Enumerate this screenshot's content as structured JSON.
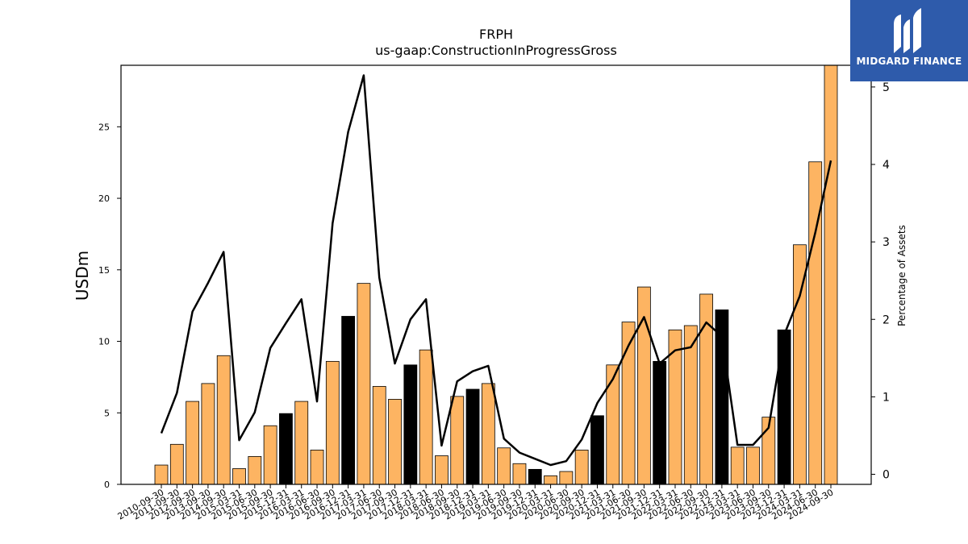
{
  "chart_data": {
    "type": "bar",
    "title": "FRPH",
    "subtitle": "us-gaap:ConstructionInProgressGross",
    "ylabel": "USDm",
    "y2label": "Percentage of Assets",
    "ylim": [
      0,
      29.3
    ],
    "y2lim": [
      -0.13,
      5.28
    ],
    "yticks": [
      0,
      5,
      10,
      15,
      20,
      25
    ],
    "y2ticks": [
      0,
      1,
      2,
      3,
      4,
      5
    ],
    "categories": [
      "2010-09-30",
      "2011-09-30",
      "2012-09-30",
      "2013-09-30",
      "2014-09-30",
      "2015-03-31",
      "2015-06-30",
      "2015-09-30",
      "2015-12-31",
      "2016-03-31",
      "2016-06-30",
      "2016-09-30",
      "2016-12-31",
      "2017-03-31",
      "2017-06-30",
      "2017-09-30",
      "2017-12-31",
      "2018-03-31",
      "2018-06-30",
      "2018-09-30",
      "2018-12-31",
      "2019-03-31",
      "2019-06-30",
      "2019-09-30",
      "2019-12-31",
      "2020-03-31",
      "2020-06-30",
      "2020-09-30",
      "2020-12-31",
      "2021-03-31",
      "2021-06-30",
      "2021-09-30",
      "2021-12-31",
      "2022-03-31",
      "2022-06-30",
      "2022-09-30",
      "2022-12-31",
      "2023-03-31",
      "2023-06-30",
      "2023-09-30",
      "2023-12-31",
      "2024-03-31",
      "2024-06-30",
      "2024-09-30"
    ],
    "series": [
      {
        "kind": "bar",
        "values": [
          1.35,
          2.8,
          5.8,
          7.05,
          9.0,
          1.1,
          1.95,
          4.1,
          4.95,
          5.8,
          2.4,
          8.6,
          11.75,
          14.05,
          6.85,
          5.95,
          8.35,
          9.4,
          2.0,
          6.15,
          6.65,
          7.05,
          2.55,
          1.45,
          1.05,
          0.6,
          0.9,
          2.4,
          4.8,
          8.35,
          11.35,
          13.8,
          8.6,
          10.8,
          11.1,
          13.3,
          12.2,
          2.6,
          2.6,
          4.7,
          10.8,
          16.75,
          22.55,
          29.3
        ],
        "highlight": [
          false,
          false,
          false,
          false,
          false,
          false,
          false,
          false,
          true,
          false,
          false,
          false,
          true,
          false,
          false,
          false,
          true,
          false,
          false,
          false,
          true,
          false,
          false,
          false,
          true,
          false,
          false,
          false,
          true,
          false,
          false,
          false,
          true,
          false,
          false,
          false,
          true,
          false,
          false,
          false,
          true,
          false,
          false,
          false
        ]
      },
      {
        "kind": "line",
        "axis": "right",
        "values": [
          0.53,
          1.05,
          2.1,
          2.47,
          2.87,
          0.44,
          0.8,
          1.63,
          1.95,
          2.26,
          0.94,
          3.24,
          4.42,
          5.15,
          2.54,
          1.43,
          2.0,
          2.26,
          0.37,
          1.2,
          1.33,
          1.4,
          0.46,
          0.28,
          0.2,
          0.12,
          0.17,
          0.45,
          0.92,
          1.23,
          1.66,
          2.03,
          1.43,
          1.6,
          1.64,
          1.96,
          1.78,
          0.38,
          0.38,
          0.6,
          1.8,
          2.3,
          3.12,
          4.05
        ]
      }
    ],
    "colors": {
      "bar": "#fdb462",
      "bar_highlight": "#000000",
      "line": "#000000"
    },
    "grid": false,
    "legend": "none"
  },
  "logo": {
    "text": "MIDGARD FINANCE",
    "icon": "midgard-logo-icon",
    "bg": "#2e5bab"
  }
}
